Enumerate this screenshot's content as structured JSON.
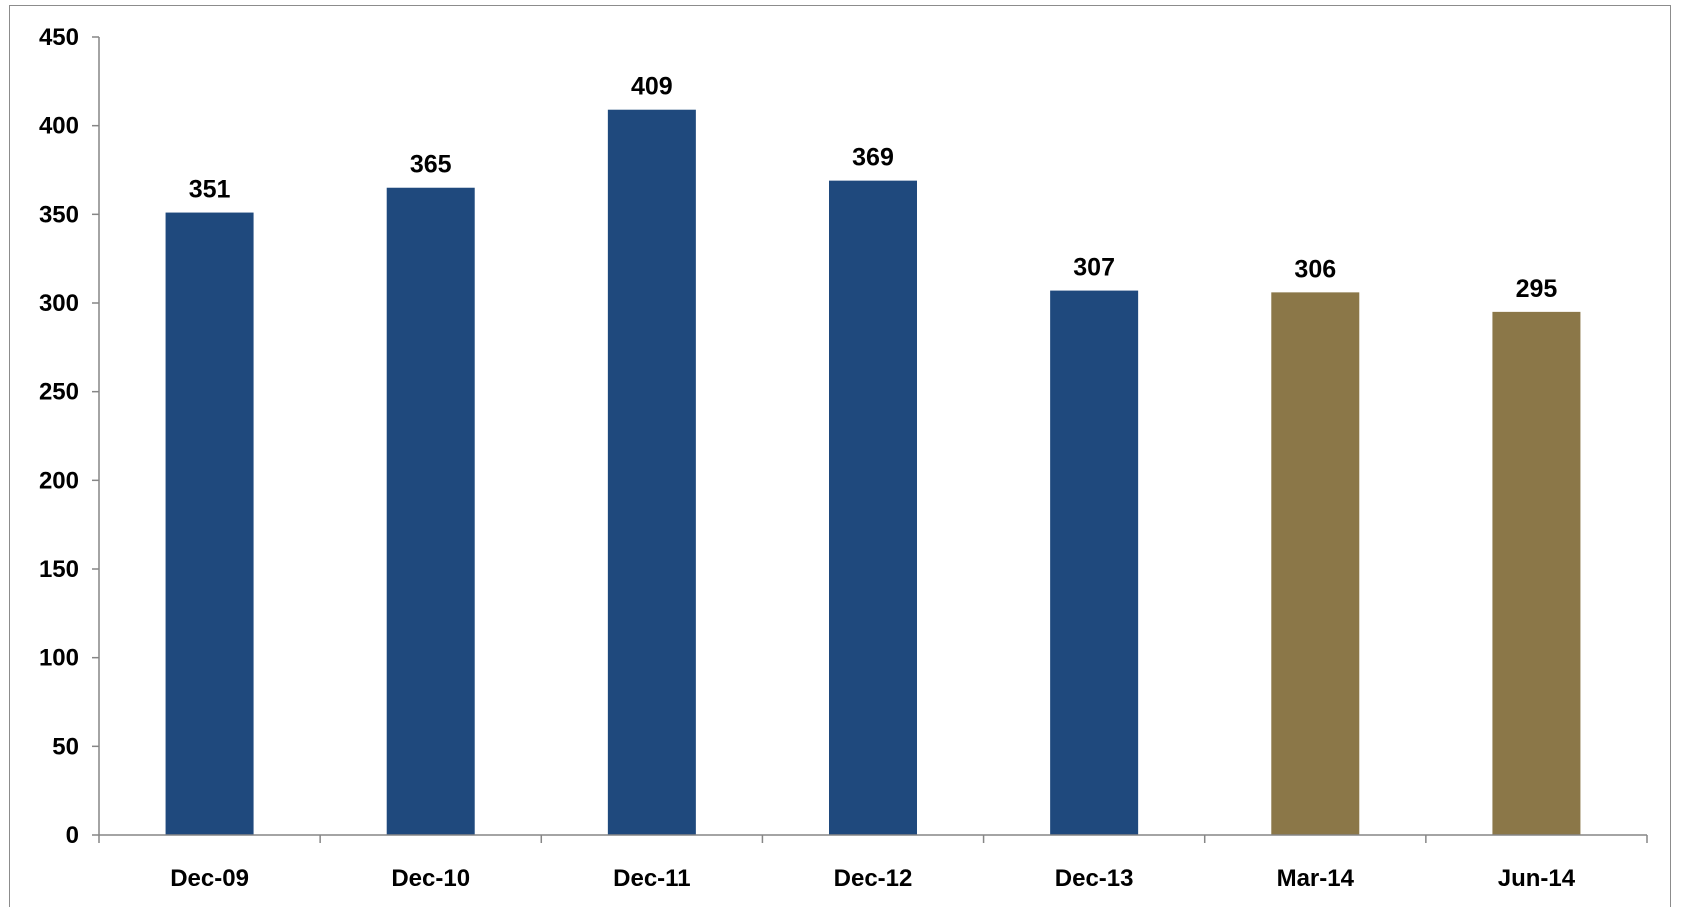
{
  "chart_data": {
    "type": "bar",
    "title": "",
    "xlabel": "",
    "ylabel": "",
    "categories": [
      "Dec-09",
      "Dec-10",
      "Dec-11",
      "Dec-12",
      "Dec-13",
      "Mar-14",
      "Jun-14"
    ],
    "values": [
      351,
      365,
      409,
      369,
      307,
      306,
      295
    ],
    "bar_colors": [
      "#1f497d",
      "#1f497d",
      "#1f497d",
      "#1f497d",
      "#1f497d",
      "#8b7748",
      "#8b7748"
    ],
    "ylim": [
      0,
      450
    ],
    "yticks": [
      0,
      50,
      100,
      150,
      200,
      250,
      300,
      350,
      400,
      450
    ],
    "grid": false,
    "legend": "none",
    "data_labels": true
  }
}
